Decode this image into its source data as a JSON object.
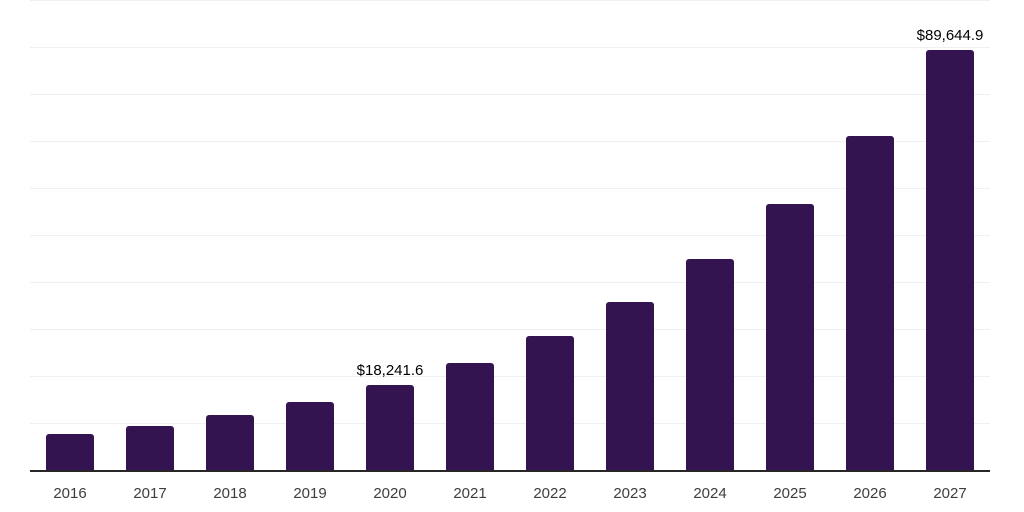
{
  "chart_data": {
    "type": "bar",
    "title": "",
    "xlabel": "",
    "ylabel": "",
    "categories": [
      "2016",
      "2017",
      "2018",
      "2019",
      "2020",
      "2021",
      "2022",
      "2023",
      "2024",
      "2025",
      "2026",
      "2027"
    ],
    "values": [
      7870,
      9570,
      11980,
      14680,
      18241.6,
      23040,
      28720,
      35890,
      45110,
      56870,
      71280,
      89644.9
    ],
    "data_labels": {
      "2020": "$18,241.6",
      "2027": "$89,644.9"
    },
    "ylim": [
      0,
      100000
    ],
    "gridline_step": 10000,
    "grid": "horizontal-only",
    "legend_position": "none",
    "colors": {
      "bar": "#331450",
      "axis_line": "#262626",
      "gridline": "#f0f0f0",
      "value_label": "#000000",
      "tick_label": "#3d3d3d",
      "background": "#ffffff"
    }
  }
}
